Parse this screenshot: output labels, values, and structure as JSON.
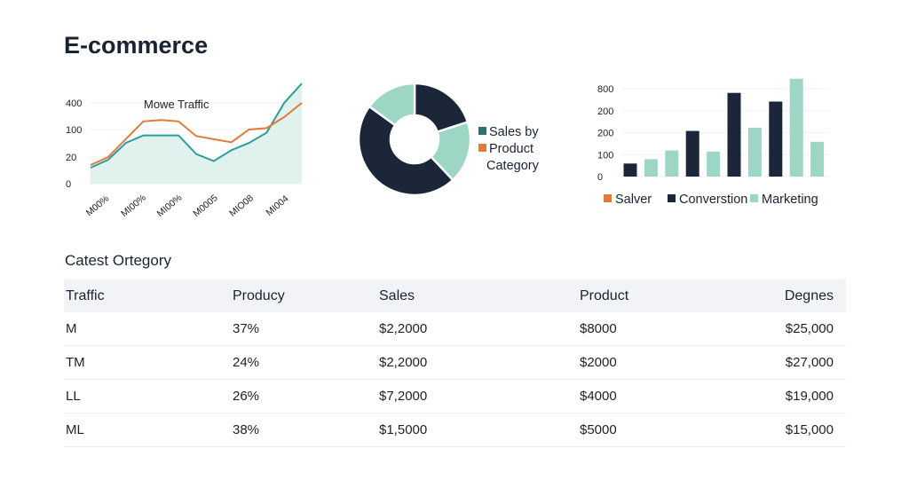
{
  "title": "E-commerce",
  "chart_data": [
    {
      "type": "line",
      "title": "Mowe Traffic",
      "y_ticks": [
        0,
        20,
        100,
        400
      ],
      "x_tick_labels": [
        "M00%",
        "MI00%",
        "MI00%",
        "M0005",
        "MIO08",
        "MI004"
      ],
      "series": [
        {
          "color": "#2e9b9b",
          "area_fill": "#d8efe8",
          "values": [
            12,
            18,
            61,
            83,
            83,
            83,
            29,
            17,
            40,
            61,
            91,
            400,
            620
          ]
        },
        {
          "color": "#e07b39",
          "values": [
            14,
            20,
            72,
            192,
            208,
            192,
            81,
            72,
            63,
            100,
            116,
            241,
            400
          ]
        }
      ],
      "grid": true
    },
    {
      "type": "pie",
      "donut": true,
      "slices": [
        {
          "value": 20,
          "color": "#1b2638"
        },
        {
          "value": 18,
          "color": "#9ed6c6"
        },
        {
          "value": 47,
          "color": "#1b2638"
        },
        {
          "value": 15,
          "color": "#9ed6c6"
        }
      ],
      "legend": [
        {
          "label": "Sales by",
          "color": "#2a7373"
        },
        {
          "label": "Product",
          "color": "#e07b39"
        },
        {
          "label": "Category",
          "color": ""
        }
      ],
      "legend_placement": "right"
    },
    {
      "type": "bar",
      "y_tick_labels": [
        "0",
        "100",
        "200",
        "200",
        "800"
      ],
      "values": [
        60,
        80,
        120,
        210,
        115,
        385,
        225,
        345,
        450,
        160
      ],
      "colors": [
        "#1b2638",
        "#9ed6c6",
        "#9ed6c6",
        "#1b2638",
        "#9ed6c6",
        "#1b2638",
        "#9ed6c6",
        "#1b2638",
        "#9ed6c6",
        "#9ed6c6"
      ],
      "legend": [
        {
          "label": "Salver",
          "color": "#e07b39"
        },
        {
          "label": "Converstion",
          "color": "#1b2638"
        },
        {
          "label": "Marketing",
          "color": "#9ed6c6"
        }
      ],
      "legend_placement": "bottom",
      "grid": true
    }
  ],
  "table": {
    "title": "Catest Ortegory",
    "headers": [
      "Traffic",
      "Producy",
      "Sales",
      "Product",
      "Degnes"
    ],
    "rows": [
      [
        "M",
        "37%",
        "$2,2000",
        "$8000",
        "$25,000"
      ],
      [
        "TM",
        "24%",
        "$2,2000",
        "$2000",
        "$27,000"
      ],
      [
        "LL",
        "26%",
        "$7,2000",
        "$4000",
        "$19,000"
      ],
      [
        "ML",
        "38%",
        "$1,5000",
        "$5000",
        "$15,000"
      ]
    ]
  }
}
